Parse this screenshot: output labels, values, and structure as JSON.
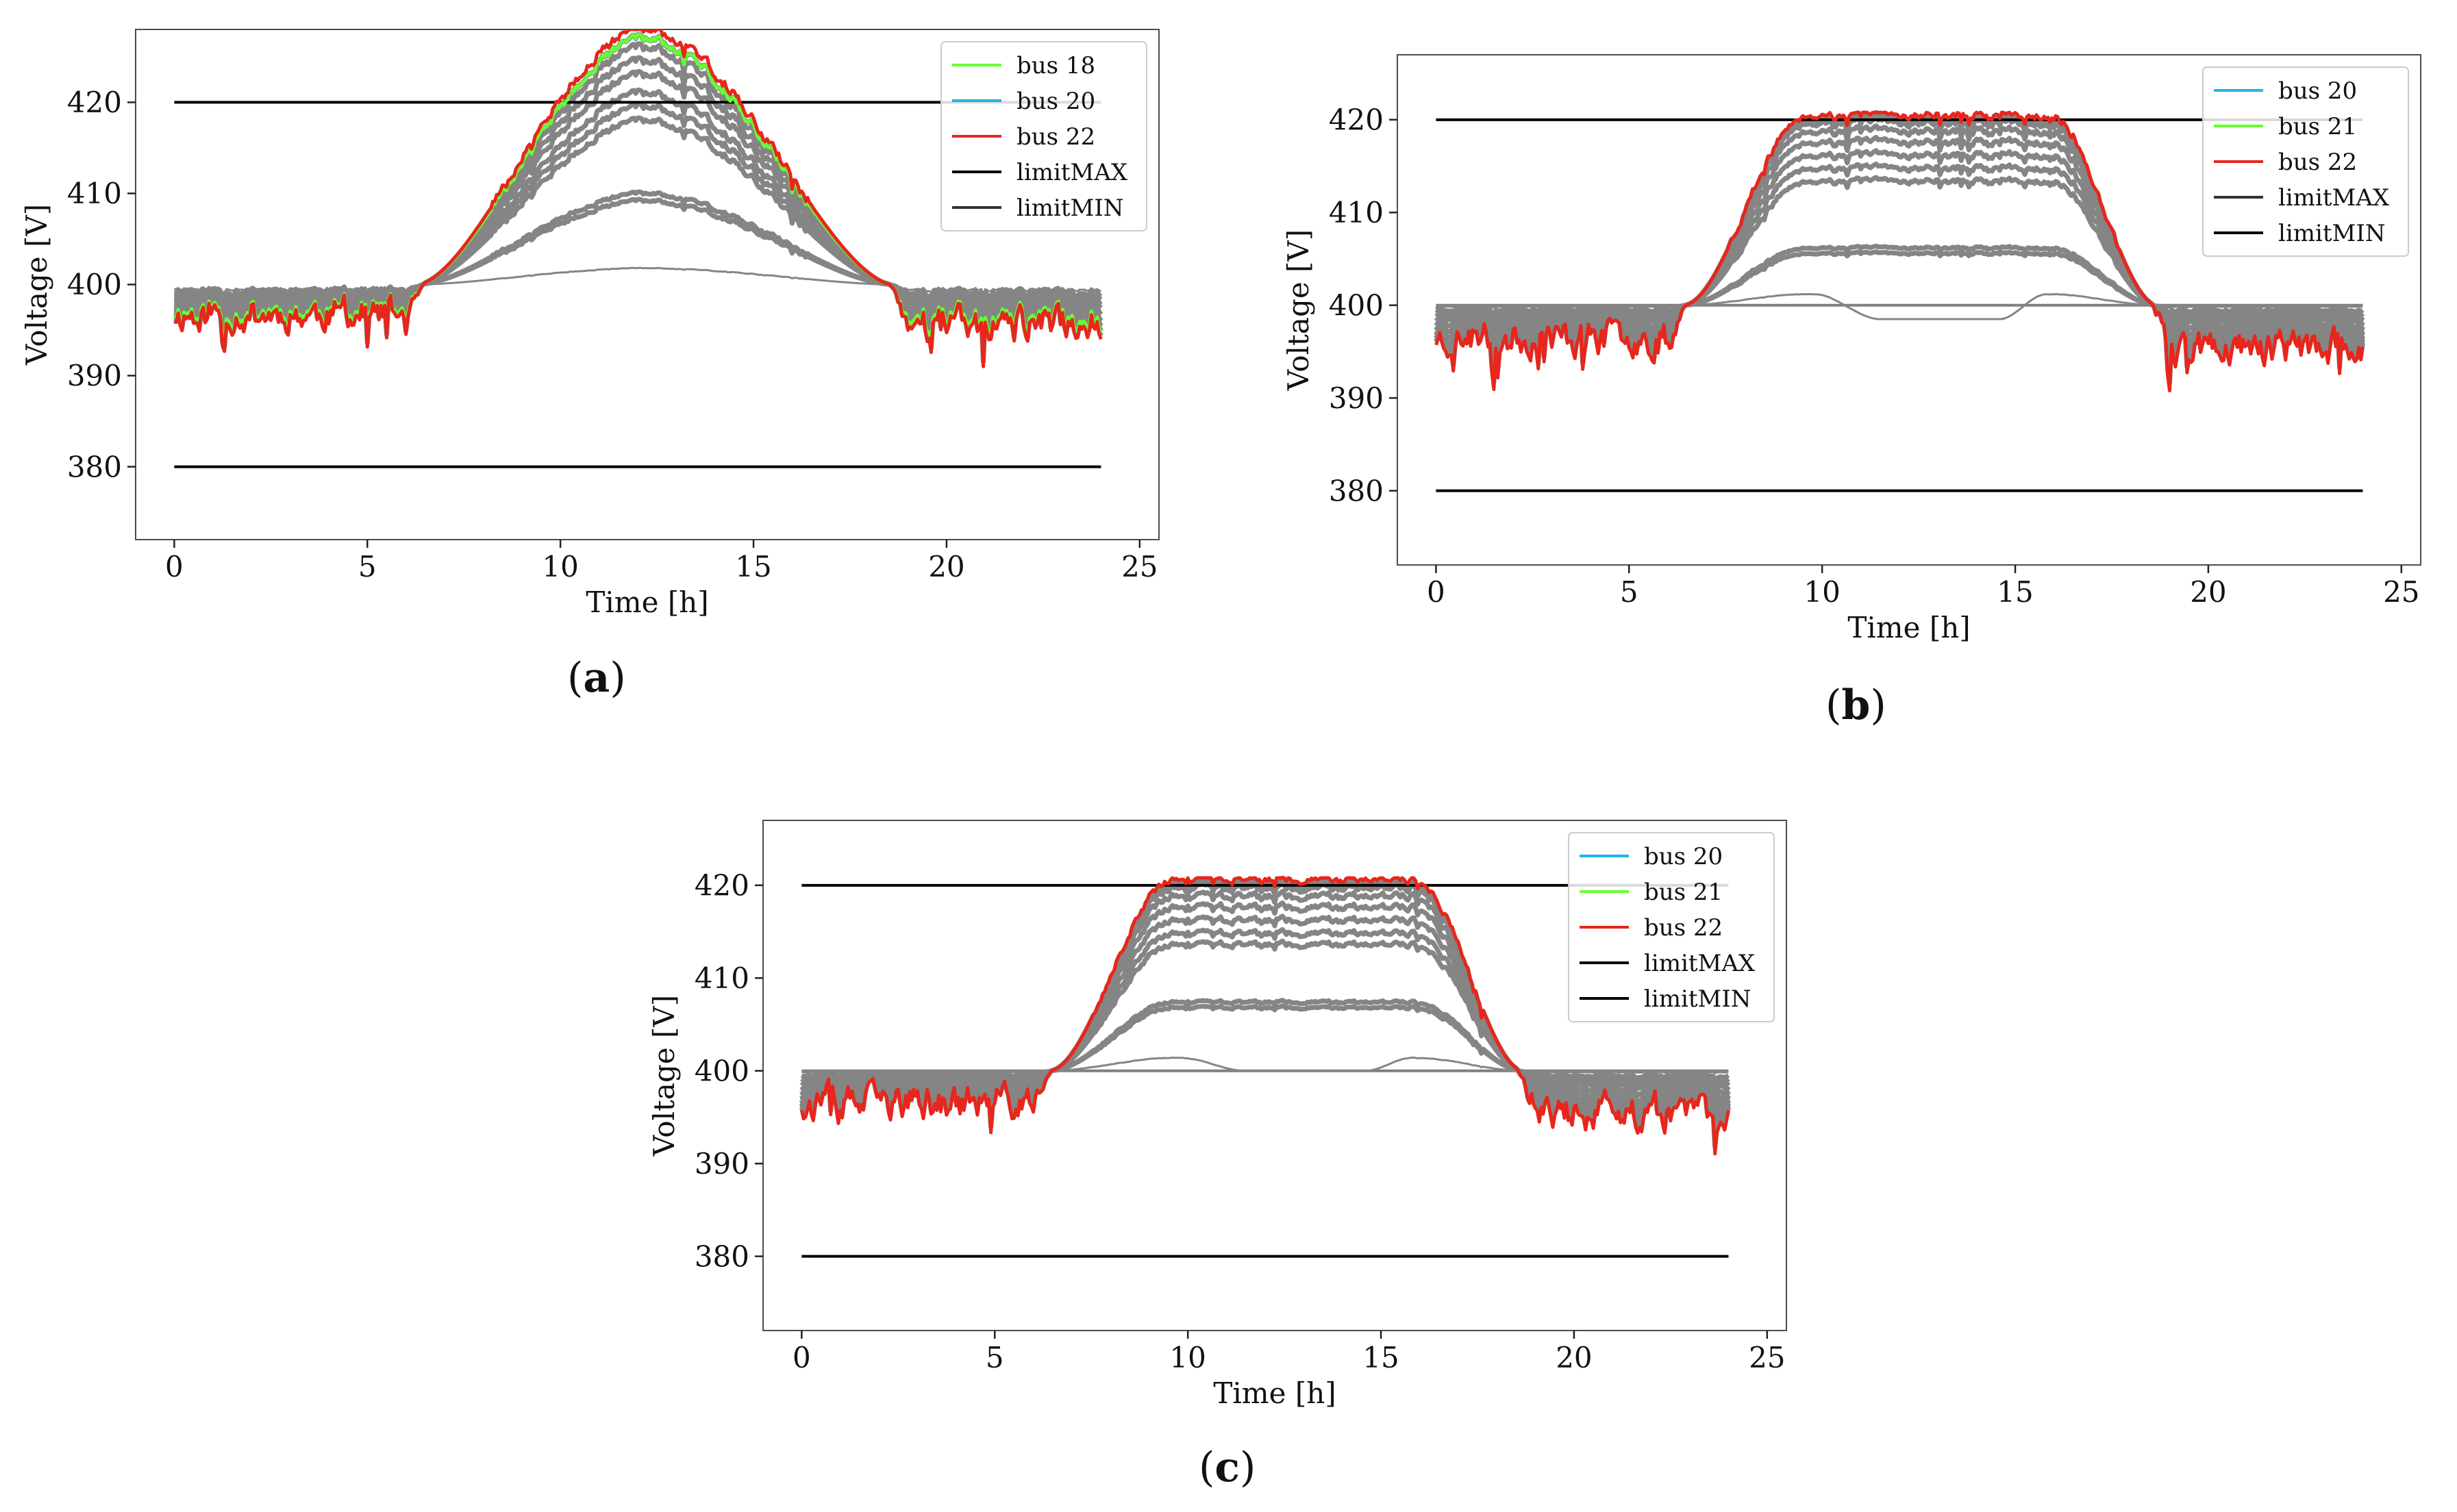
{
  "figure": {
    "captions": [
      "(a)",
      "(b)",
      "(c)"
    ]
  },
  "chart_data": [
    {
      "id": "a",
      "type": "line",
      "caption": "(a)",
      "xlabel": "Time [h]",
      "ylabel": "Voltage [V]",
      "xlim": [
        -1,
        25.5
      ],
      "ylim": [
        372,
        428
      ],
      "xticks": [
        0,
        5,
        10,
        15,
        20,
        25
      ],
      "yticks": [
        380,
        390,
        400,
        410,
        420
      ],
      "grid": false,
      "legend_position": "top-right",
      "limit_lines": [
        {
          "name": "limitMAX",
          "value": 420,
          "x": [
            0,
            24
          ],
          "color": "#000000"
        },
        {
          "name": "limitMIN",
          "value": 380,
          "x": [
            0,
            24
          ],
          "color": "#000000"
        }
      ],
      "legend": [
        {
          "label": "bus 18",
          "color": "#66ff33"
        },
        {
          "label": "bus 20",
          "color": "#1fb4e8"
        },
        {
          "label": "bus 22",
          "color": "#e8261c"
        },
        {
          "label": "limitMAX",
          "color": "#000000"
        },
        {
          "label": "limitMIN",
          "color": "#333333"
        }
      ],
      "highlighted_series": [
        {
          "name": "bus 22",
          "color": "#e8261c",
          "night_level": 396.7,
          "peak": 428
        },
        {
          "name": "bus 18",
          "color": "#66ff33",
          "night_level": 397.1,
          "peak": 427
        }
      ],
      "gray_bands": [
        {
          "night_level": 396.9,
          "peak": 427
        },
        {
          "night_level": 397.2,
          "peak": 426
        },
        {
          "night_level": 397.5,
          "peak": 424.5
        },
        {
          "night_level": 397.8,
          "peak": 423
        },
        {
          "night_level": 398.2,
          "peak": 421
        },
        {
          "night_level": 398.6,
          "peak": 419.5
        },
        {
          "night_level": 398.8,
          "peak": 418
        },
        {
          "night_level": 399.1,
          "peak": 410
        },
        {
          "night_level": 399.3,
          "peak": 409.2
        },
        {
          "night_level": 399.6,
          "peak": 401.8
        }
      ],
      "notes": "Voltages dip to about 393–397 V at night and rise to a midday peak around 12 h; the top curves exceed the 420 V limit between ~10 h and ~15.5 h."
    },
    {
      "id": "b",
      "type": "line",
      "caption": "(b)",
      "xlabel": "Time [h]",
      "ylabel": "Voltage [V]",
      "xlim": [
        -1,
        25.5
      ],
      "ylim": [
        372,
        427
      ],
      "xticks": [
        0,
        5,
        10,
        15,
        20,
        25
      ],
      "yticks": [
        380,
        390,
        400,
        410,
        420
      ],
      "grid": false,
      "legend_position": "top-right",
      "limit_lines": [
        {
          "name": "limitMAX",
          "value": 420,
          "x": [
            0,
            24
          ],
          "color": "#000000"
        },
        {
          "name": "limitMIN",
          "value": 380,
          "x": [
            0,
            24
          ],
          "color": "#000000"
        }
      ],
      "reference_line": {
        "value": 400,
        "color": "#808080"
      },
      "legend": [
        {
          "label": "bus 20",
          "color": "#1fb4e8"
        },
        {
          "label": "bus 21",
          "color": "#66ff33"
        },
        {
          "label": "bus 22",
          "color": "#e8261c"
        },
        {
          "label": "limitMAX",
          "color": "#333333"
        },
        {
          "label": "limitMIN",
          "color": "#000000"
        }
      ],
      "highlighted_series": [
        {
          "name": "bus 22",
          "color": "#e8261c",
          "night_level": 396.5,
          "peak": 420.5
        }
      ],
      "gray_bands": [
        {
          "night_level": 396.8,
          "peak": 420.2
        },
        {
          "night_level": 397.1,
          "peak": 419.7
        },
        {
          "night_level": 397.4,
          "peak": 418.8
        },
        {
          "night_level": 397.8,
          "peak": 417.6
        },
        {
          "night_level": 398.2,
          "peak": 416.2
        },
        {
          "night_level": 398.6,
          "peak": 414.8
        },
        {
          "night_level": 399.0,
          "peak": 413.4
        },
        {
          "night_level": 399.3,
          "peak": 406.2
        },
        {
          "night_level": 399.6,
          "peak": 405.6
        },
        {
          "night_level": 399.9,
          "peak": 401.2,
          "dip_to": 398.5
        }
      ],
      "notes": "Curtailed case: the highest curves are capped at about 420 V between ~9.5 h and ~16 h."
    },
    {
      "id": "c",
      "type": "line",
      "caption": "(c)",
      "xlabel": "Time [h]",
      "ylabel": "Voltage [V]",
      "xlim": [
        -1,
        25.5
      ],
      "ylim": [
        372,
        427
      ],
      "xticks": [
        0,
        5,
        10,
        15,
        20,
        25
      ],
      "yticks": [
        380,
        390,
        400,
        410,
        420
      ],
      "grid": false,
      "legend_position": "top-right",
      "limit_lines": [
        {
          "name": "limitMAX",
          "value": 420,
          "x": [
            0,
            24
          ],
          "color": "#000000"
        },
        {
          "name": "limitMIN",
          "value": 380,
          "x": [
            0,
            24
          ],
          "color": "#000000"
        }
      ],
      "reference_line": {
        "value": 400,
        "color": "#808080"
      },
      "legend": [
        {
          "label": "bus 20",
          "color": "#1fb4e8"
        },
        {
          "label": "bus 21",
          "color": "#66ff33"
        },
        {
          "label": "bus 22",
          "color": "#e8261c"
        },
        {
          "label": "limitMAX",
          "color": "#000000"
        },
        {
          "label": "limitMIN",
          "color": "#000000"
        }
      ],
      "highlighted_series": [
        {
          "name": "bus 22",
          "color": "#e8261c",
          "night_level": 396.5,
          "peak": 420.6
        }
      ],
      "gray_bands": [
        {
          "night_level": 396.8,
          "peak": 420.2
        },
        {
          "night_level": 397.1,
          "peak": 419.7
        },
        {
          "night_level": 397.4,
          "peak": 418.8
        },
        {
          "night_level": 397.8,
          "peak": 417.6
        },
        {
          "night_level": 398.2,
          "peak": 416.2
        },
        {
          "night_level": 398.6,
          "peak": 414.8
        },
        {
          "night_level": 399.0,
          "peak": 413.6
        },
        {
          "night_level": 399.3,
          "peak": 407.4
        },
        {
          "night_level": 399.6,
          "peak": 406.8
        },
        {
          "night_level": 399.9,
          "peak": 401.4,
          "dip_to": 400.0
        }
      ],
      "notes": "Similar to (b): peak voltages held near 420 V from ~9.5 h to ~16 h."
    }
  ]
}
